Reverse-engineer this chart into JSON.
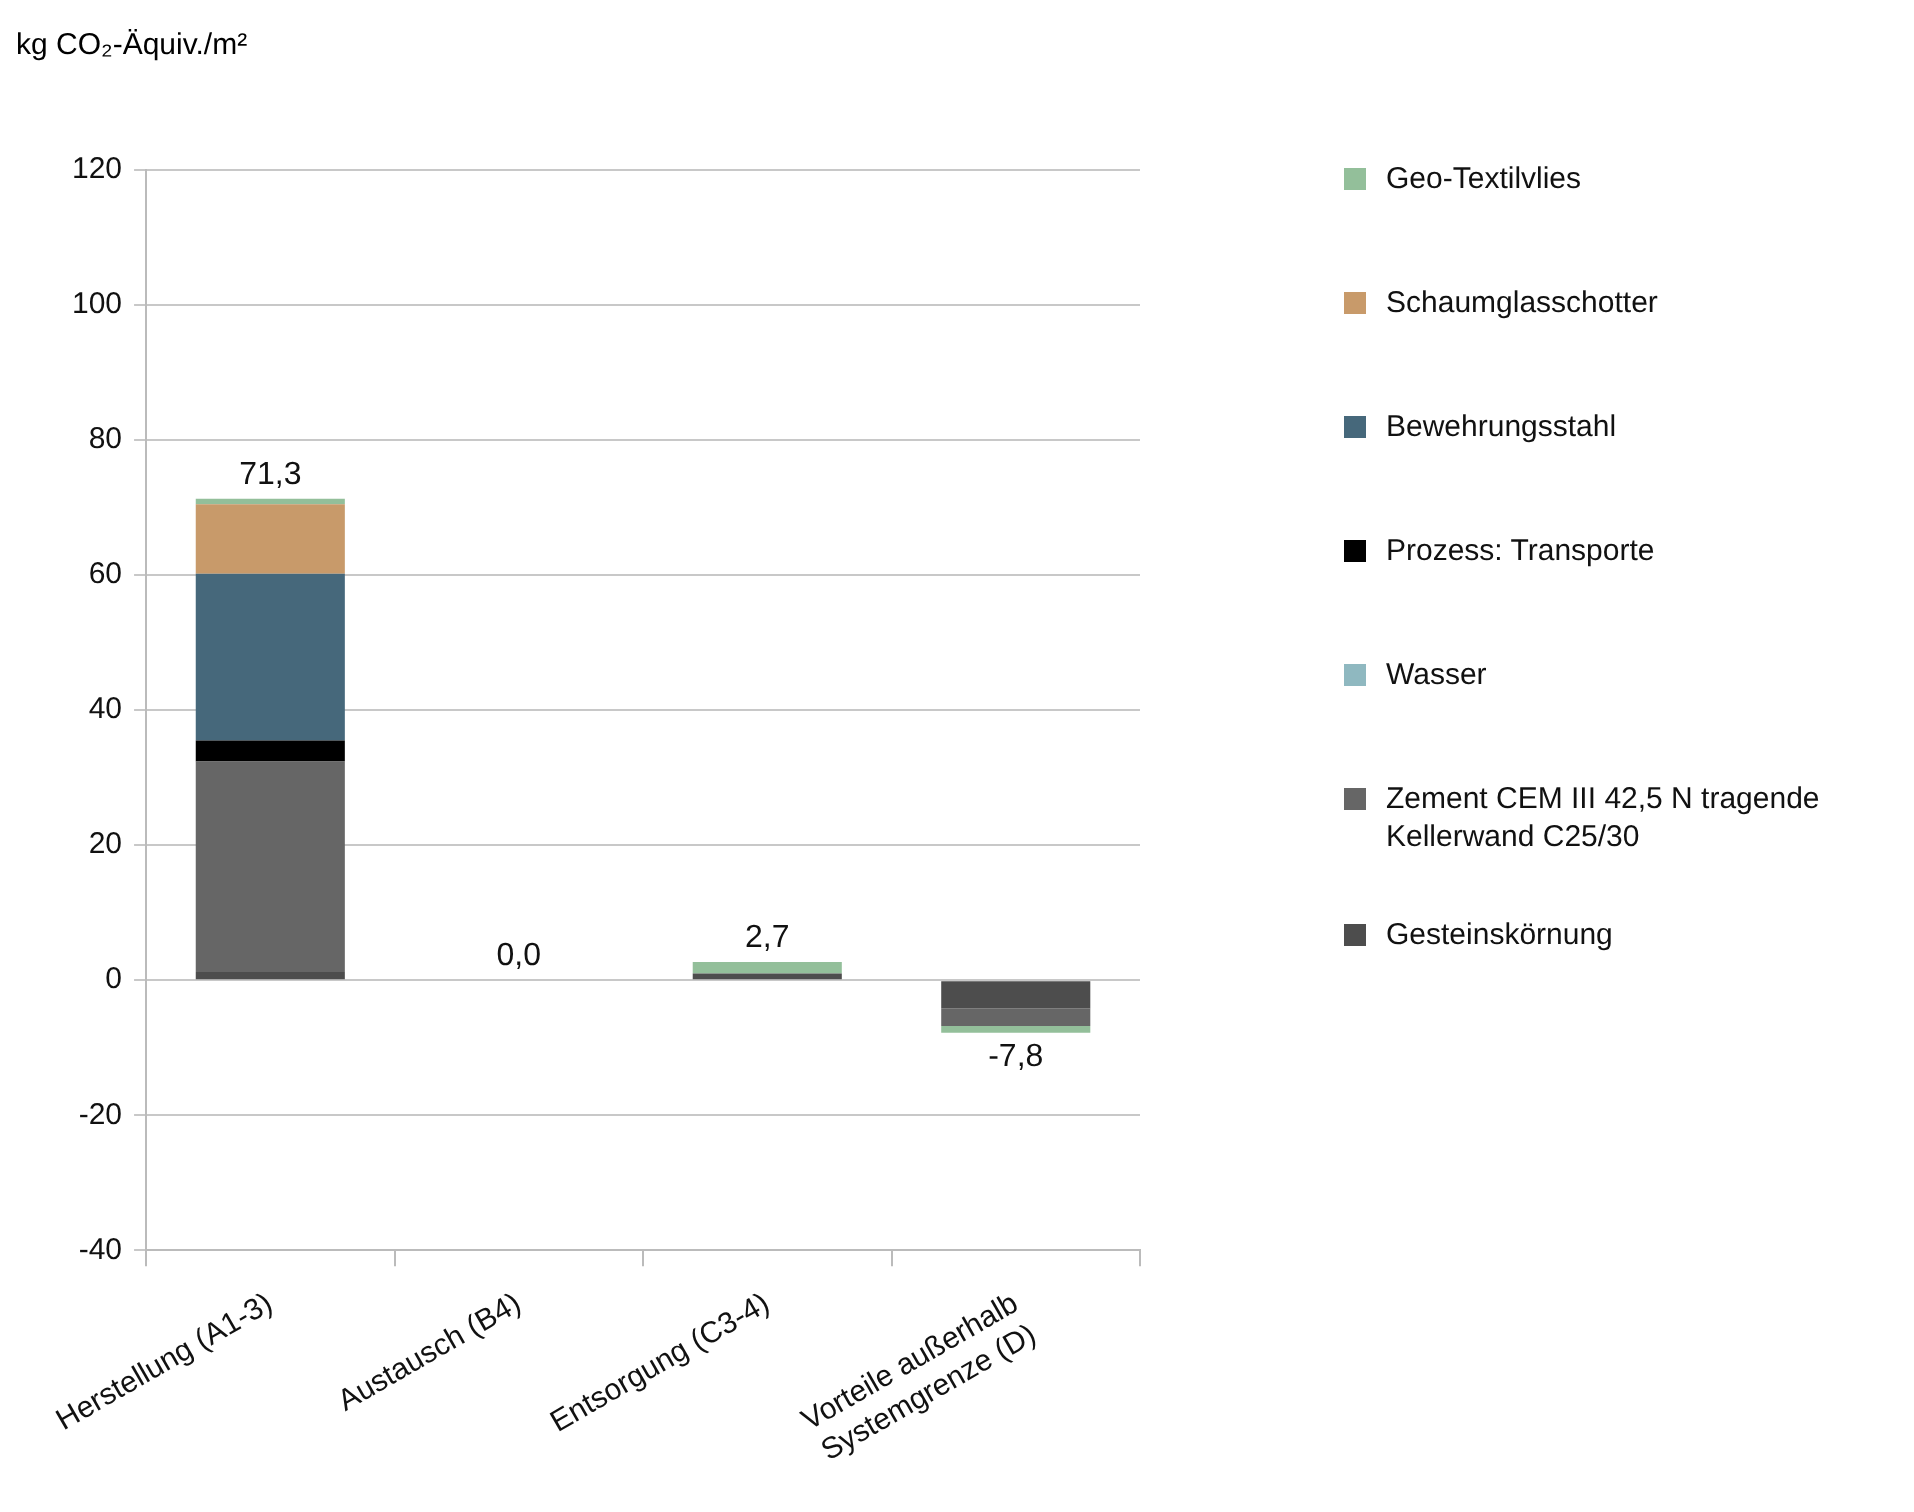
{
  "chart_data": {
    "type": "bar",
    "stacked": true,
    "ylabel": "kg CO₂-Äquiv./m²",
    "categories": [
      "Herstellung (A1-3)",
      "Austausch (B4)",
      "Entsorgung (C3-4)",
      "Vorteile außerhalb Systemgrenze (D)"
    ],
    "series": [
      {
        "name": "Gesteinskörnung",
        "color": "#4d4d4d",
        "values": [
          1.2,
          0,
          1.0,
          -4.2
        ]
      },
      {
        "name": "Zement CEM III 42,5 N tragende Kellerwand C25/30",
        "color": "#666666",
        "values": [
          31.2,
          0,
          0,
          -2.6
        ]
      },
      {
        "name": "Wasser",
        "color": "#8fb8c0",
        "values": [
          0,
          0,
          0,
          0
        ]
      },
      {
        "name": "Prozess: Transporte",
        "color": "#000000",
        "values": [
          3.1,
          0,
          0,
          0
        ]
      },
      {
        "name": "Bewehrungsstahl",
        "color": "#46687b",
        "values": [
          24.7,
          0,
          0,
          0
        ]
      },
      {
        "name": "Schaumglasschotter",
        "color": "#c89a6a",
        "values": [
          10.3,
          0,
          0,
          0
        ]
      },
      {
        "name": "Geo-Textilvlies",
        "color": "#93bf9a",
        "values": [
          0.8,
          0,
          1.7,
          -1.0
        ]
      }
    ],
    "totals": [
      "71,3",
      "0,0",
      "2,7",
      "-7,8"
    ],
    "ylim": [
      -40,
      120
    ],
    "yticks": [
      -40,
      -20,
      0,
      20,
      40,
      60,
      80,
      100,
      120
    ],
    "grid": "y",
    "legend": "right"
  }
}
